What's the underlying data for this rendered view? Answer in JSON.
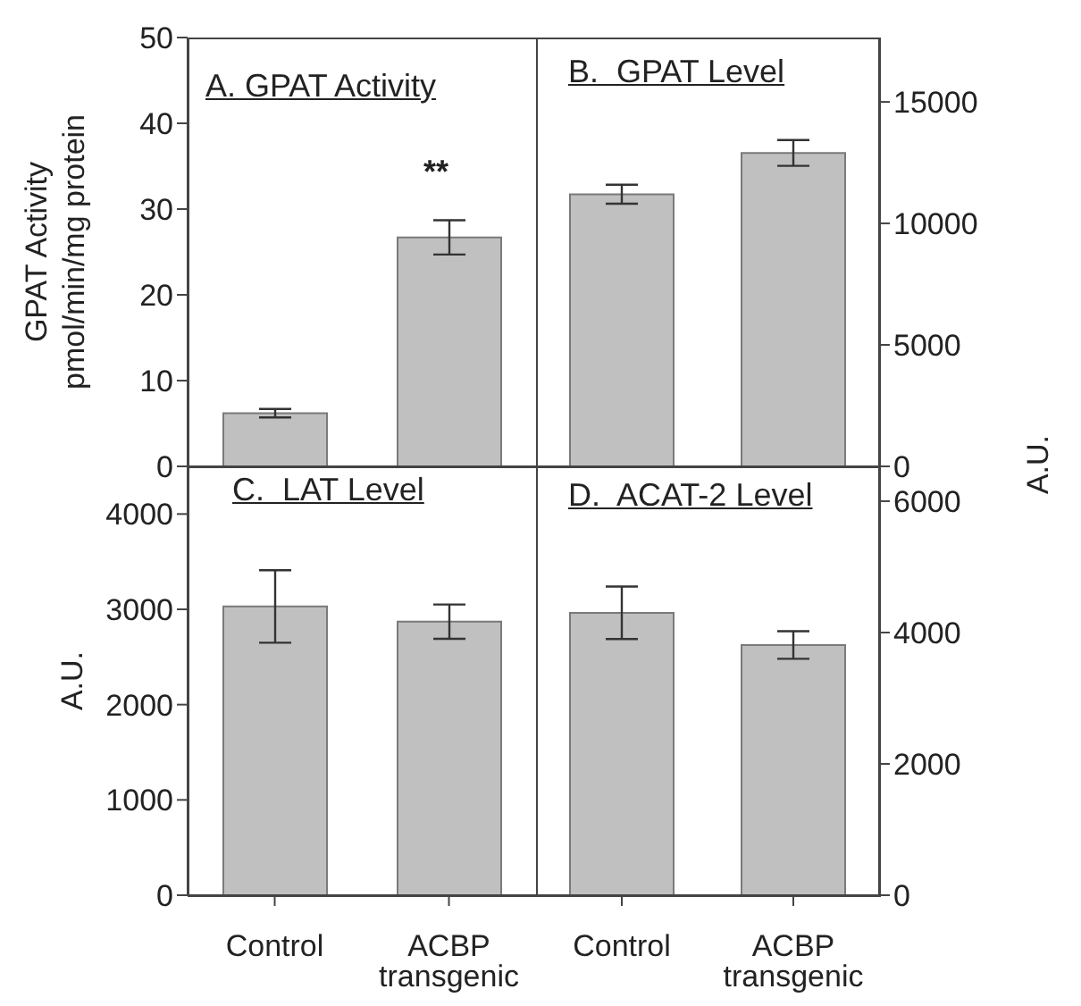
{
  "chart_data": [
    {
      "type": "bar",
      "title": "A. GPAT Activity",
      "ylabel": "GPAT Activity\npmol/min/mg protein",
      "categories": [
        null,
        null
      ],
      "tick_labels": "y",
      "ylim": [
        0,
        50
      ],
      "yticks": [
        0,
        10,
        20,
        30,
        40,
        50
      ],
      "series": [
        {
          "color": "#c0c0c0",
          "values": [
            6.2,
            26.7
          ],
          "errors": [
            0.5,
            2.0
          ]
        }
      ],
      "annotations": [
        "**"
      ]
    },
    {
      "type": "bar",
      "title": "B.  GPAT Level",
      "ylabel": "A.U.",
      "categories": [
        null,
        null
      ],
      "tick_labels": "y",
      "ylim": [
        0,
        17650
      ],
      "yticks": [
        0,
        5000,
        10000,
        15000
      ],
      "series": [
        {
          "color": "#c0c0c0",
          "values": [
            11200,
            12900
          ],
          "errors": [
            390,
            530
          ]
        }
      ]
    },
    {
      "type": "bar",
      "title": "C.  LAT Level",
      "ylabel": "A.U.",
      "categories": [
        "Control",
        "ACBP transgenic"
      ],
      "ylim": [
        0,
        4500
      ],
      "yticks": [
        0,
        1000,
        2000,
        3000,
        4000
      ],
      "series": [
        {
          "color": "#c0c0c0",
          "values": [
            3030,
            2870
          ],
          "errors": [
            380,
            180
          ]
        }
      ]
    },
    {
      "type": "bar",
      "title": "D.  ACAT-2 Level",
      "categories": [
        "Control",
        "ACBP transgenic"
      ],
      "ylim": [
        0,
        6530
      ],
      "yticks": [
        0,
        2000,
        4000,
        6000
      ],
      "series": [
        {
          "color": "#c0c0c0",
          "values": [
            4300,
            3810
          ],
          "errors": [
            400,
            210
          ]
        }
      ]
    }
  ]
}
